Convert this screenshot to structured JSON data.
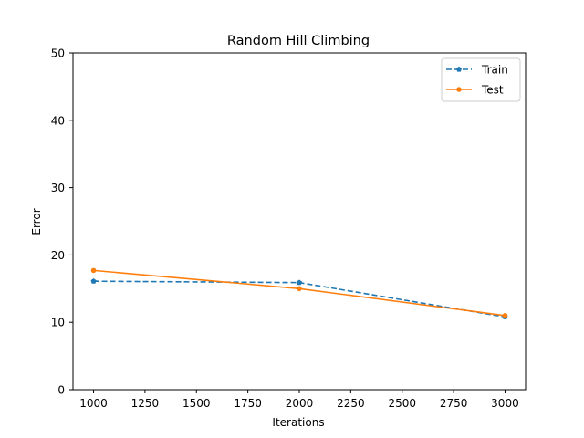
{
  "chart_data": {
    "type": "line",
    "title": "Random Hill Climbing",
    "xlabel": "Iterations",
    "ylabel": "Error",
    "xlim": [
      900,
      3100
    ],
    "ylim": [
      0,
      50
    ],
    "xticks": [
      "1000",
      "1250",
      "1500",
      "1750",
      "2000",
      "2250",
      "2500",
      "2750",
      "3000"
    ],
    "yticks": [
      "0",
      "10",
      "20",
      "30",
      "40",
      "50"
    ],
    "grid": false,
    "legend_position": "top-right",
    "series": [
      {
        "name": "Train",
        "color": "#1f77b4",
        "line_style": "dashed",
        "marker": "pentagon",
        "x": [
          1000,
          2000,
          3000
        ],
        "y": [
          16.1,
          15.9,
          10.8
        ]
      },
      {
        "name": "Test",
        "color": "#ff7f0e",
        "line_style": "solid",
        "marker": "circle",
        "x": [
          1000,
          2000,
          3000
        ],
        "y": [
          17.7,
          15.0,
          11.0
        ]
      }
    ]
  }
}
